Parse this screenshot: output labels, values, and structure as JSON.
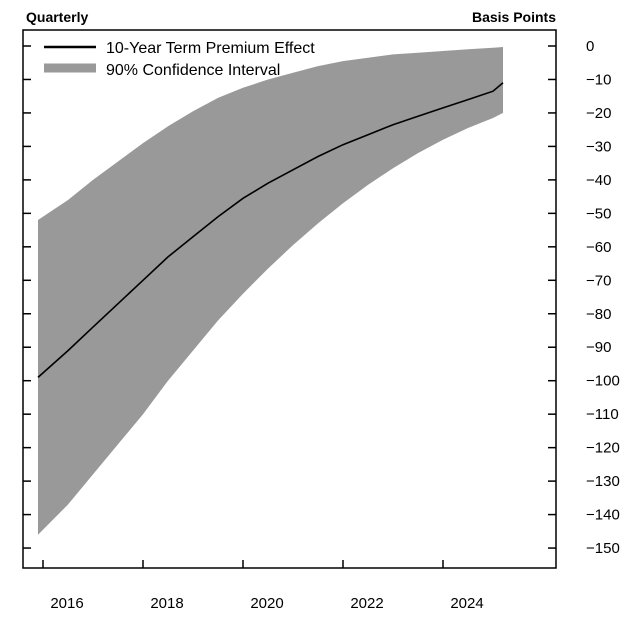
{
  "chart_data": {
    "type": "area",
    "frequency_label": "Quarterly",
    "unit_label": "Basis Points",
    "x_ticks": [
      2016,
      2018,
      2020,
      2022,
      2024
    ],
    "y_ticks": [
      0,
      -10,
      -20,
      -30,
      -40,
      -50,
      -60,
      -70,
      -80,
      -90,
      -100,
      -110,
      -120,
      -130,
      -140,
      -150
    ],
    "xlim": [
      2015.0,
      2025.3
    ],
    "ylim": [
      -154,
      2
    ],
    "grid": false,
    "legend_position": "top-left",
    "colors": {
      "line": "#000000",
      "band": "#999999"
    },
    "series": [
      {
        "name": "10-Year Term Premium Effect",
        "kind": "line",
        "x": [
          2015.9,
          2016.5,
          2017.0,
          2017.5,
          2018.0,
          2018.5,
          2019.0,
          2019.5,
          2020.0,
          2020.5,
          2021.0,
          2021.5,
          2022.0,
          2022.5,
          2023.0,
          2023.5,
          2024.0,
          2024.5,
          2025.0,
          2025.2
        ],
        "y": [
          -99,
          -91,
          -84,
          -77,
          -70,
          -63,
          -57,
          -51,
          -45.5,
          -41,
          -37,
          -33,
          -29.5,
          -26.5,
          -23.5,
          -21,
          -18.5,
          -16,
          -13.5,
          -11
        ]
      },
      {
        "name": "90% Confidence Interval",
        "kind": "band",
        "x": [
          2015.9,
          2016.5,
          2017.0,
          2017.5,
          2018.0,
          2018.5,
          2019.0,
          2019.5,
          2020.0,
          2020.5,
          2021.0,
          2021.5,
          2022.0,
          2022.5,
          2023.0,
          2023.5,
          2024.0,
          2024.5,
          2025.0,
          2025.2
        ],
        "upper": [
          -52,
          -46,
          -40,
          -34.5,
          -29,
          -24,
          -19.5,
          -15.5,
          -12.5,
          -10,
          -8,
          -6,
          -4.5,
          -3.5,
          -2.5,
          -2,
          -1.5,
          -1,
          -0.5,
          -0.3
        ],
        "lower": [
          -146,
          -137,
          -128,
          -119,
          -110,
          -100,
          -91,
          -82,
          -74,
          -66.5,
          -59.5,
          -53,
          -47,
          -41.5,
          -36.5,
          -32,
          -28,
          -24.5,
          -21.5,
          -20
        ]
      }
    ]
  }
}
